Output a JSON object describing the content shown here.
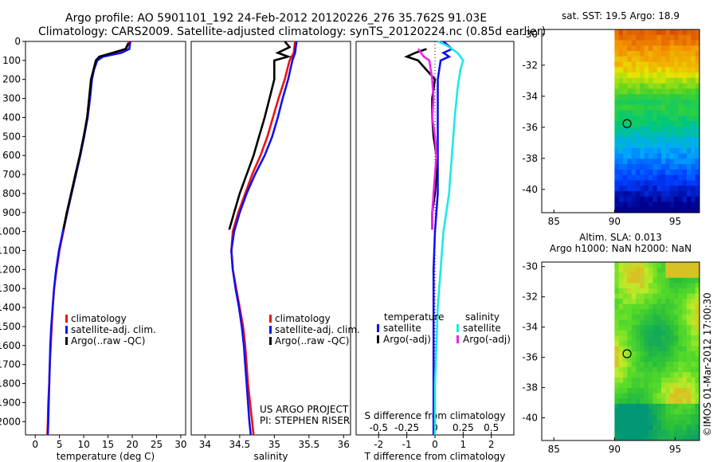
{
  "header": {
    "title_line1": "Argo profile: AO 5901101_192 24-Feb-2012 20120226_276 35.762S 91.03E",
    "title_line2": "Climatology: CARS2009. Satellite-adjusted climatology: synTS_20120224.nc (0.85d earlier)"
  },
  "credit": {
    "project": "US ARGO PROJECT",
    "pi": "PI: STEPHEN RISER",
    "stamp": "©IMOS 01-Mar-2012 17:00:30"
  },
  "colors": {
    "climatology": "#ee1111",
    "satellite": "#1111ee",
    "argo": "#000000",
    "sal_satellite": "#22e6e6",
    "sal_argo": "#ee22ee"
  },
  "chart_data": [
    {
      "id": "temperature",
      "type": "line",
      "xlabel": "temperature (deg C)",
      "xlim": [
        -2,
        31
      ],
      "ylim": [
        2070,
        0
      ],
      "xticks": [
        0,
        5,
        10,
        15,
        20,
        25,
        30
      ],
      "yticks": [
        0,
        100,
        200,
        300,
        400,
        500,
        600,
        700,
        800,
        900,
        1000,
        1100,
        1200,
        1300,
        1400,
        1500,
        1600,
        1700,
        1800,
        1900,
        2000
      ],
      "legend": [
        "climatology",
        "satellite-adj. clim.",
        "Argo(..raw -QC)"
      ],
      "series": [
        {
          "name": "climatology",
          "color": "#ee1111",
          "points": [
            [
              19.3,
              0
            ],
            [
              18.8,
              40
            ],
            [
              17.5,
              60
            ],
            [
              13.5,
              80
            ],
            [
              12.6,
              100
            ],
            [
              12.0,
              150
            ],
            [
              11.6,
              200
            ],
            [
              11.2,
              300
            ],
            [
              10.7,
              400
            ],
            [
              10.0,
              500
            ],
            [
              9.2,
              600
            ],
            [
              8.3,
              700
            ],
            [
              7.4,
              800
            ],
            [
              6.6,
              900
            ],
            [
              5.8,
              1000
            ],
            [
              5.0,
              1100
            ],
            [
              4.4,
              1200
            ],
            [
              3.9,
              1300
            ],
            [
              3.6,
              1400
            ],
            [
              3.4,
              1500
            ],
            [
              3.2,
              1600
            ],
            [
              3.0,
              1700
            ],
            [
              2.9,
              1800
            ],
            [
              2.7,
              1900
            ],
            [
              2.6,
              2000
            ],
            [
              2.5,
              2070
            ]
          ]
        },
        {
          "name": "satellite-adj. clim.",
          "color": "#1111ee",
          "points": [
            [
              19.6,
              0
            ],
            [
              19.4,
              40
            ],
            [
              17.8,
              60
            ],
            [
              14.0,
              80
            ],
            [
              12.8,
              100
            ],
            [
              12.1,
              150
            ],
            [
              11.7,
              200
            ],
            [
              11.3,
              300
            ],
            [
              10.8,
              400
            ],
            [
              10.1,
              500
            ],
            [
              9.3,
              600
            ],
            [
              8.4,
              700
            ],
            [
              7.5,
              800
            ],
            [
              6.6,
              900
            ],
            [
              5.7,
              1000
            ],
            [
              4.9,
              1100
            ],
            [
              4.3,
              1200
            ],
            [
              3.9,
              1300
            ],
            [
              3.6,
              1400
            ],
            [
              3.3,
              1500
            ],
            [
              3.1,
              1600
            ],
            [
              3.0,
              1700
            ],
            [
              2.9,
              1800
            ],
            [
              2.8,
              1900
            ],
            [
              2.7,
              2000
            ],
            [
              2.6,
              2070
            ]
          ]
        },
        {
          "name": "Argo(..raw -QC)",
          "color": "#000000",
          "points": [
            [
              19.2,
              10
            ],
            [
              18.6,
              40
            ],
            [
              16.0,
              60
            ],
            [
              13.2,
              80
            ],
            [
              12.5,
              100
            ],
            [
              12.0,
              150
            ],
            [
              11.5,
              200
            ],
            [
              11.1,
              300
            ],
            [
              10.7,
              400
            ],
            [
              10.0,
              500
            ],
            [
              9.2,
              600
            ],
            [
              8.3,
              700
            ],
            [
              7.4,
              800
            ],
            [
              6.5,
              900
            ],
            [
              5.8,
              990
            ]
          ]
        }
      ]
    },
    {
      "id": "salinity",
      "type": "line",
      "xlabel": "salinity",
      "xlim": [
        33.8,
        36.1
      ],
      "ylim": [
        2070,
        0
      ],
      "xticks": [
        34,
        34.5,
        35,
        35.5,
        36
      ],
      "legend": [
        "climatology",
        "satellite-adj. clim.",
        "Argo(..raw -QC)"
      ],
      "series": [
        {
          "name": "climatology",
          "color": "#ee1111",
          "points": [
            [
              35.3,
              0
            ],
            [
              35.28,
              60
            ],
            [
              35.22,
              100
            ],
            [
              35.15,
              200
            ],
            [
              35.06,
              300
            ],
            [
              34.98,
              400
            ],
            [
              34.9,
              500
            ],
            [
              34.8,
              600
            ],
            [
              34.68,
              700
            ],
            [
              34.58,
              800
            ],
            [
              34.48,
              900
            ],
            [
              34.4,
              1000
            ],
            [
              34.38,
              1100
            ],
            [
              34.4,
              1200
            ],
            [
              34.45,
              1300
            ],
            [
              34.5,
              1400
            ],
            [
              34.55,
              1500
            ],
            [
              34.58,
              1600
            ],
            [
              34.6,
              1700
            ],
            [
              34.62,
              1800
            ],
            [
              34.65,
              1900
            ],
            [
              34.68,
              2000
            ],
            [
              34.7,
              2070
            ]
          ]
        },
        {
          "name": "satellite-adj. clim.",
          "color": "#1111ee",
          "points": [
            [
              35.32,
              0
            ],
            [
              35.3,
              60
            ],
            [
              35.26,
              100
            ],
            [
              35.2,
              200
            ],
            [
              35.12,
              300
            ],
            [
              35.05,
              400
            ],
            [
              34.97,
              500
            ],
            [
              34.86,
              600
            ],
            [
              34.72,
              700
            ],
            [
              34.6,
              800
            ],
            [
              34.5,
              900
            ],
            [
              34.42,
              1000
            ],
            [
              34.38,
              1100
            ],
            [
              34.4,
              1200
            ],
            [
              34.44,
              1300
            ],
            [
              34.49,
              1400
            ],
            [
              34.53,
              1500
            ],
            [
              34.56,
              1600
            ],
            [
              34.58,
              1700
            ],
            [
              34.6,
              1800
            ],
            [
              34.62,
              1900
            ],
            [
              34.64,
              2000
            ],
            [
              34.66,
              2070
            ]
          ]
        },
        {
          "name": "Argo(..raw -QC)",
          "color": "#000000",
          "points": [
            [
              35.15,
              0
            ],
            [
              35.22,
              30
            ],
            [
              35.05,
              60
            ],
            [
              35.2,
              80
            ],
            [
              35.0,
              100
            ],
            [
              35.0,
              200
            ],
            [
              34.93,
              300
            ],
            [
              34.86,
              400
            ],
            [
              34.78,
              500
            ],
            [
              34.7,
              600
            ],
            [
              34.6,
              700
            ],
            [
              34.5,
              800
            ],
            [
              34.42,
              900
            ],
            [
              34.35,
              990
            ]
          ]
        }
      ]
    },
    {
      "id": "difference",
      "type": "line",
      "xlabel": "T difference from climatology",
      "top_label": "S difference from climatology",
      "xlim": [
        -2.8,
        2.8
      ],
      "ylim": [
        2070,
        0
      ],
      "xticks_bottom": [
        {
          "v": -2,
          "label": "-2"
        },
        {
          "v": -1,
          "label": "-1"
        },
        {
          "v": 0,
          "label": "0"
        },
        {
          "v": 1,
          "label": "1"
        },
        {
          "v": 2,
          "label": "2"
        }
      ],
      "xticks_top": [
        {
          "v": -2,
          "label": "-0.5"
        },
        {
          "v": -1,
          "label": "-0.25"
        },
        {
          "v": 0,
          "label": "0"
        },
        {
          "v": 1,
          "label": "0.25"
        },
        {
          "v": 2,
          "label": "0.5"
        }
      ],
      "legend_groups": [
        {
          "title": "temperature",
          "items": [
            {
              "label": "satellite",
              "color": "#1111ee"
            },
            {
              "label": "Argo(-adj)",
              "color": "#000000"
            }
          ]
        },
        {
          "title": "salinity",
          "items": [
            {
              "label": "satellite",
              "color": "#22e6e6"
            },
            {
              "label": "Argo(-adj)",
              "color": "#ee22ee"
            }
          ]
        }
      ],
      "series": [
        {
          "name": "temperature satellite",
          "color": "#1111ee",
          "points": [
            [
              0.3,
              0
            ],
            [
              0.6,
              40
            ],
            [
              0.3,
              60
            ],
            [
              0.5,
              80
            ],
            [
              0.2,
              100
            ],
            [
              0.1,
              200
            ],
            [
              0.1,
              400
            ],
            [
              0.1,
              600
            ],
            [
              0.1,
              800
            ],
            [
              0.0,
              1000
            ],
            [
              -0.05,
              1200
            ],
            [
              -0.05,
              1400
            ],
            [
              -0.05,
              1600
            ],
            [
              -0.05,
              1800
            ],
            [
              -0.05,
              2000
            ],
            [
              -0.05,
              2070
            ]
          ]
        },
        {
          "name": "salinity satellite",
          "color": "#22e6e6",
          "points": [
            [
              0.1,
              0
            ],
            [
              0.4,
              20
            ],
            [
              0.8,
              60
            ],
            [
              1.0,
              100
            ],
            [
              0.9,
              150
            ],
            [
              0.8,
              250
            ],
            [
              0.7,
              400
            ],
            [
              0.6,
              600
            ],
            [
              0.5,
              800
            ],
            [
              0.3,
              1000
            ],
            [
              0.2,
              1200
            ],
            [
              0.1,
              1400
            ],
            [
              0.05,
              1600
            ],
            [
              0.0,
              1800
            ],
            [
              0.0,
              2000
            ],
            [
              0.0,
              2070
            ]
          ]
        },
        {
          "name": "temperature Argo(-adj)",
          "color": "#000000",
          "points": [
            [
              -0.3,
              40
            ],
            [
              -0.7,
              60
            ],
            [
              -1.0,
              80
            ],
            [
              -0.6,
              100
            ],
            [
              0.0,
              200
            ],
            [
              -0.1,
              300
            ],
            [
              -0.1,
              400
            ],
            [
              -0.05,
              500
            ],
            [
              0.05,
              600
            ],
            [
              0.05,
              700
            ],
            [
              0.0,
              800
            ],
            [
              -0.1,
              900
            ],
            [
              -0.1,
              990
            ]
          ]
        },
        {
          "name": "salinity Argo(-adj)",
          "color": "#ee22ee",
          "points": [
            [
              -0.6,
              40
            ],
            [
              -0.4,
              80
            ],
            [
              -0.2,
              100
            ],
            [
              -0.1,
              200
            ],
            [
              -0.05,
              300
            ],
            [
              -0.1,
              400
            ],
            [
              0.0,
              500
            ],
            [
              0.05,
              600
            ],
            [
              0.0,
              700
            ],
            [
              -0.05,
              800
            ],
            [
              -0.1,
              900
            ],
            [
              -0.1,
              990
            ]
          ]
        }
      ]
    },
    {
      "id": "sst_map",
      "type": "heatmap",
      "title": "sat. SST: 19.5 Argo: 18.9",
      "xlim": [
        84,
        97
      ],
      "ylim": [
        -41.5,
        -29.7
      ],
      "xticks": [
        85,
        90,
        95
      ],
      "yticks": [
        -30,
        -32,
        -34,
        -36,
        -38,
        -40
      ],
      "data_x_start": 90,
      "marker": {
        "lon": 91.03,
        "lat": -35.762
      }
    },
    {
      "id": "sla_map",
      "type": "heatmap",
      "title_line1": "Altim. SLA: 0.013",
      "title_line2": "Argo h1000: NaN h2000: NaN",
      "xlim": [
        84,
        97
      ],
      "ylim": [
        -41.5,
        -29.7
      ],
      "xticks": [
        85,
        90,
        95
      ],
      "yticks": [
        -30,
        -32,
        -34,
        -36,
        -38,
        -40
      ],
      "data_x_start": 90,
      "marker": {
        "lon": 91.03,
        "lat": -35.762
      }
    }
  ]
}
